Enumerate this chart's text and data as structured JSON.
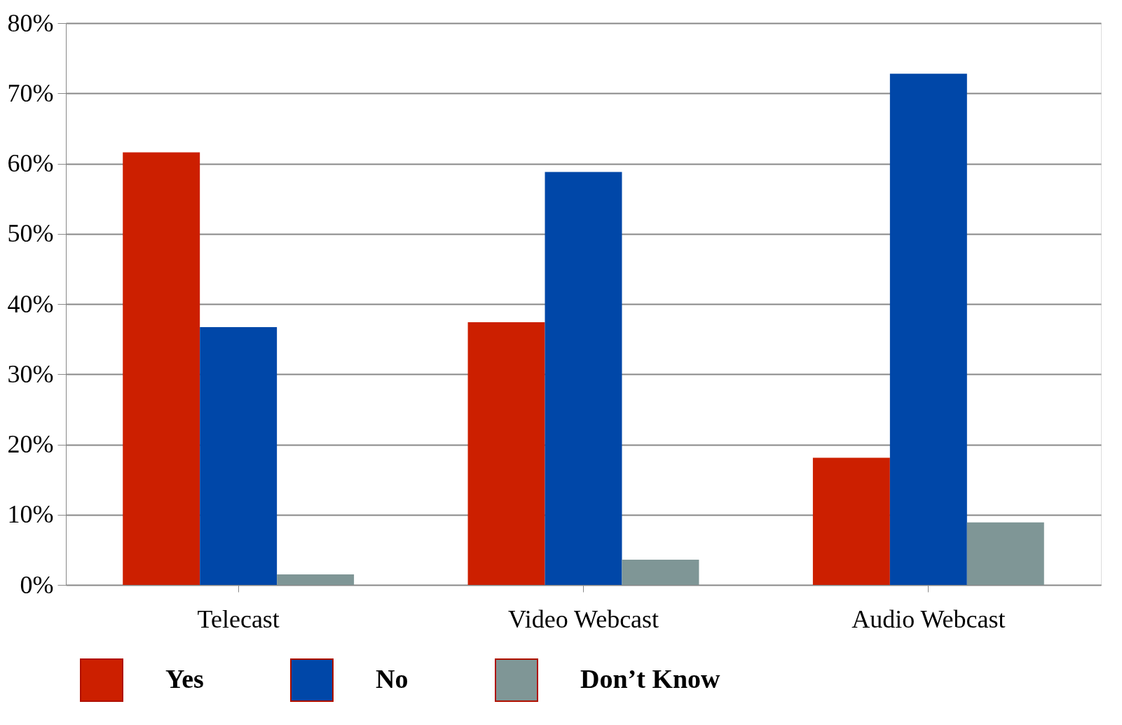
{
  "chart_data": {
    "type": "bar",
    "categories": [
      "Telecast",
      "Video Webcast",
      "Audio Webcast"
    ],
    "series": [
      {
        "name": "Yes",
        "color": "#cc1f00",
        "values": [
          61.6,
          37.4,
          18.1
        ]
      },
      {
        "name": "No",
        "color": "#0047a8",
        "values": [
          36.7,
          58.8,
          72.8
        ]
      },
      {
        "name": "Don’t Know",
        "color": "#7f9696",
        "values": [
          1.5,
          3.6,
          8.9
        ]
      }
    ],
    "ylim": [
      0,
      80
    ],
    "yticks": [
      {
        "value": 0,
        "label": "0%"
      },
      {
        "value": 10,
        "label": "10%"
      },
      {
        "value": 20,
        "label": "20%"
      },
      {
        "value": 30,
        "label": "30%"
      },
      {
        "value": 40,
        "label": "40%"
      },
      {
        "value": 50,
        "label": "50%"
      },
      {
        "value": 60,
        "label": "60%"
      },
      {
        "value": 70,
        "label": "70%"
      },
      {
        "value": 80,
        "label": "80%"
      }
    ],
    "grid": "y",
    "legend": "bottom"
  }
}
